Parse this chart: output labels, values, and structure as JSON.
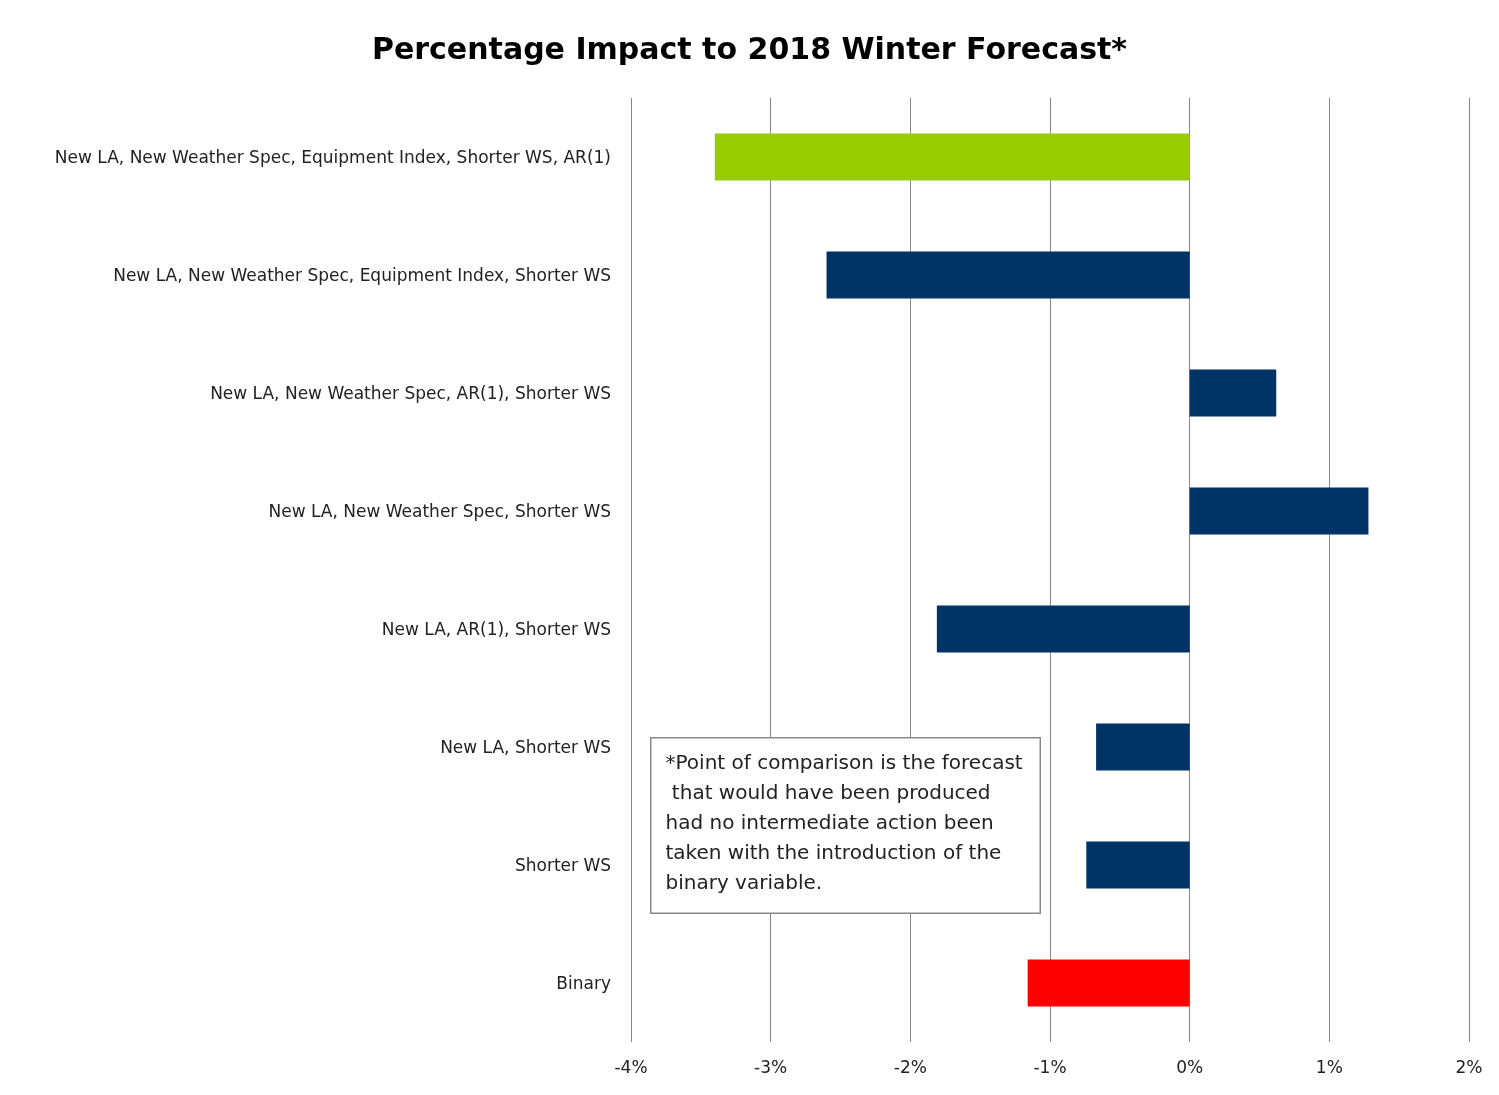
{
  "chart_data": {
    "type": "bar",
    "orientation": "horizontal",
    "title": "Percentage Impact to 2018 Winter Forecast*",
    "categories": [
      "New LA, New Weather Spec, Equipment Index, Shorter WS, AR(1)",
      "New LA, New Weather Spec, Equipment Index, Shorter WS",
      "New LA, New Weather Spec, AR(1), Shorter WS",
      "New LA, New Weather Spec, Shorter WS",
      "New LA, AR(1), Shorter WS",
      "New LA, Shorter WS",
      "Shorter WS",
      "Binary"
    ],
    "values": [
      -3.4,
      -2.6,
      0.62,
      1.28,
      -1.81,
      -0.67,
      -0.74,
      -1.16
    ],
    "colors": [
      "#99cc00",
      "#003366",
      "#003366",
      "#003366",
      "#003366",
      "#003366",
      "#003366",
      "#ff0000"
    ],
    "xlim": [
      -4,
      2
    ],
    "xticks": [
      {
        "value": -4,
        "label": "-4%"
      },
      {
        "value": -3,
        "label": "-3%"
      },
      {
        "value": -2,
        "label": "-2%"
      },
      {
        "value": -1,
        "label": "-1%"
      },
      {
        "value": 0,
        "label": "0%"
      },
      {
        "value": 1,
        "label": "1%"
      },
      {
        "value": 2,
        "label": "2%"
      }
    ],
    "grid": "x",
    "annotations": [
      "*Point of comparison is the forecast that would have been produced had no intermediate action been taken with the introduction of the binary variable."
    ]
  }
}
